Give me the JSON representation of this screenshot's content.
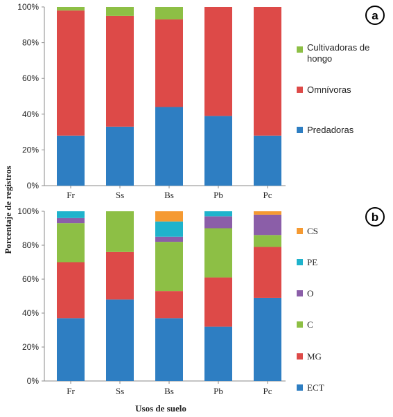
{
  "ylabel": "Porcentaje de registros",
  "xlabel": "Usos de suelo",
  "chart_data": [
    {
      "type": "bar",
      "stacked": true,
      "panel_label": "a",
      "categories": [
        "Fr",
        "Ss",
        "Bs",
        "Pb",
        "Pc"
      ],
      "ylim": [
        0,
        100
      ],
      "yticks": [
        "0%",
        "20%",
        "40%",
        "60%",
        "80%",
        "100%"
      ],
      "grid": false,
      "legend_position": "right",
      "series": [
        {
          "name": "Predadoras",
          "color": "#2e7ec2",
          "values": [
            28,
            33,
            44,
            39,
            28
          ]
        },
        {
          "name": "Omnívoras",
          "color": "#dd4a48",
          "values": [
            70,
            62,
            49,
            61,
            72
          ]
        },
        {
          "name": "Cultivadoras de hongo",
          "color": "#8dbf45",
          "values": [
            2,
            5,
            7,
            0,
            0
          ]
        }
      ]
    },
    {
      "type": "bar",
      "stacked": true,
      "panel_label": "b",
      "categories": [
        "Fr",
        "Ss",
        "Bs",
        "Pb",
        "Pc"
      ],
      "ylim": [
        0,
        100
      ],
      "yticks": [
        "0%",
        "20%",
        "40%",
        "60%",
        "80%",
        "100%"
      ],
      "grid": false,
      "legend_position": "right",
      "series": [
        {
          "name": "ECT",
          "color": "#2e7ec2",
          "values": [
            37,
            48,
            37,
            32,
            49
          ]
        },
        {
          "name": "MG",
          "color": "#dd4a48",
          "values": [
            33,
            28,
            16,
            29,
            30
          ]
        },
        {
          "name": "C",
          "color": "#8dbf45",
          "values": [
            23,
            24,
            29,
            29,
            7
          ]
        },
        {
          "name": "O",
          "color": "#8b5ea8",
          "values": [
            3,
            0,
            3,
            7,
            12
          ]
        },
        {
          "name": "PE",
          "color": "#1fb3cc",
          "values": [
            4,
            0,
            9,
            3,
            0
          ]
        },
        {
          "name": "CS",
          "color": "#f59a32",
          "values": [
            0,
            0,
            6,
            0,
            2
          ]
        }
      ]
    }
  ]
}
